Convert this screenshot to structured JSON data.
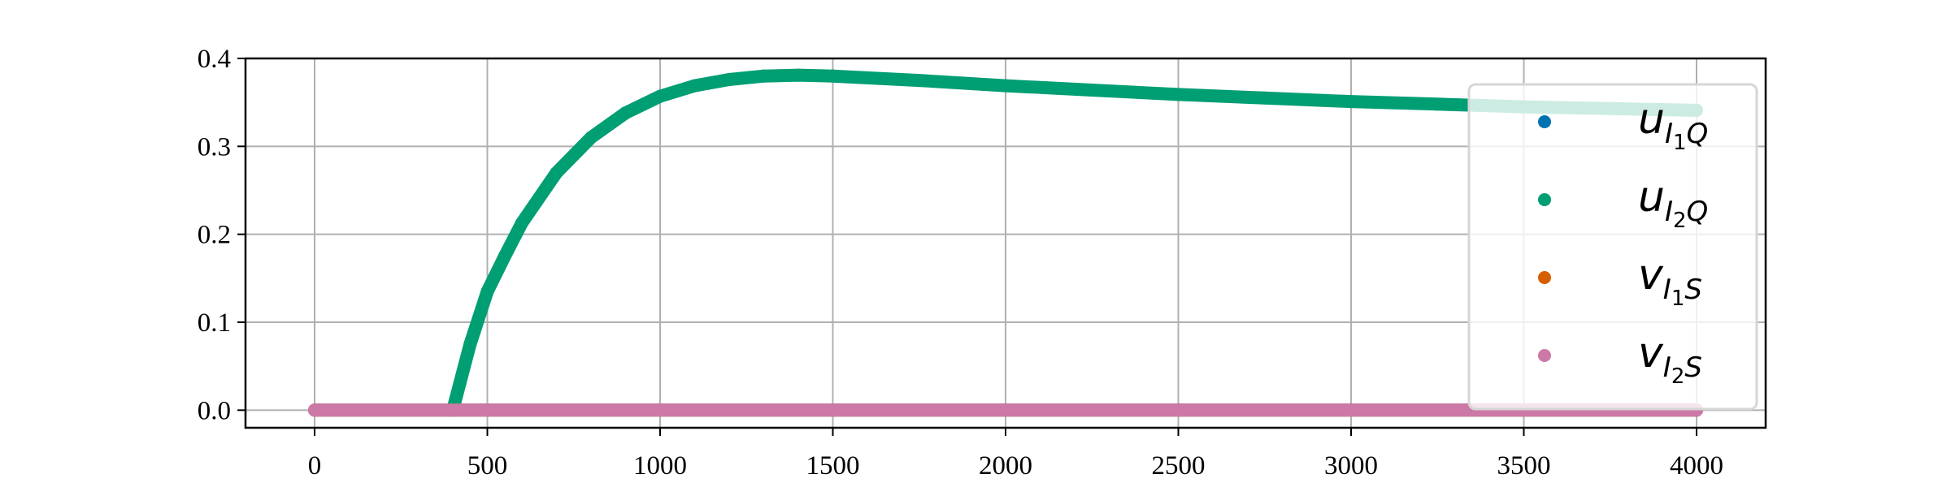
{
  "chart_data": {
    "type": "scatter",
    "title": "",
    "xlabel": "",
    "ylabel": "",
    "xlim": [
      -200,
      4200
    ],
    "ylim": [
      -0.02,
      0.4
    ],
    "grid": true,
    "legend_position": "upper-right",
    "x_ticks": [
      0,
      500,
      1000,
      1500,
      2000,
      2500,
      3000,
      3500,
      4000
    ],
    "y_ticks": [
      0.0,
      0.1,
      0.2,
      0.3,
      0.4
    ],
    "x_tick_labels": [
      "0",
      "500",
      "1000",
      "1500",
      "2000",
      "2500",
      "3000",
      "3500",
      "4000"
    ],
    "y_tick_labels": [
      "0.0",
      "0.1",
      "0.2",
      "0.3",
      "0.4"
    ],
    "series": [
      {
        "legend": {
          "base": "u",
          "sub": "I",
          "subsub": "1",
          "tail": "Q"
        },
        "color": "#0072B2",
        "points": [
          [
            0,
            0.0
          ],
          [
            4000,
            0.0
          ]
        ]
      },
      {
        "legend": {
          "base": "u",
          "sub": "I",
          "subsub": "2",
          "tail": "Q"
        },
        "color": "#009E73",
        "points": [
          [
            400,
            0.0
          ],
          [
            420,
            0.03
          ],
          [
            450,
            0.075
          ],
          [
            500,
            0.135
          ],
          [
            550,
            0.175
          ],
          [
            600,
            0.213
          ],
          [
            700,
            0.27
          ],
          [
            800,
            0.31
          ],
          [
            900,
            0.338
          ],
          [
            1000,
            0.357
          ],
          [
            1100,
            0.369
          ],
          [
            1200,
            0.376
          ],
          [
            1300,
            0.38
          ],
          [
            1400,
            0.381
          ],
          [
            1500,
            0.38
          ],
          [
            1750,
            0.375
          ],
          [
            2000,
            0.369
          ],
          [
            2250,
            0.364
          ],
          [
            2500,
            0.359
          ],
          [
            2750,
            0.355
          ],
          [
            3000,
            0.351
          ],
          [
            3250,
            0.348
          ],
          [
            3500,
            0.345
          ],
          [
            3750,
            0.343
          ],
          [
            4000,
            0.341
          ]
        ]
      },
      {
        "legend": {
          "base": "v",
          "sub": "I",
          "subsub": "1",
          "tail": "S"
        },
        "color": "#D55E00",
        "points": [
          [
            0,
            0.0
          ],
          [
            4000,
            0.0
          ]
        ]
      },
      {
        "legend": {
          "base": "v",
          "sub": "I",
          "subsub": "2",
          "tail": "S"
        },
        "color": "#CC79A7",
        "points": [
          [
            0,
            0.0
          ],
          [
            4000,
            0.0
          ]
        ]
      }
    ]
  }
}
